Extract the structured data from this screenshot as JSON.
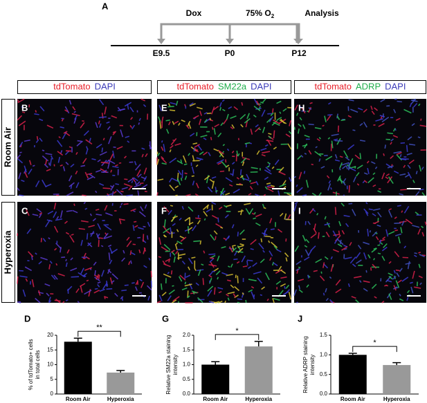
{
  "timeline": {
    "panel": "A",
    "events": [
      "Dox",
      "Analysis"
    ],
    "oxygen": {
      "text": "75% O",
      "subscript": "2"
    },
    "points": [
      "E9.5",
      "P0",
      "P12"
    ]
  },
  "headers": [
    [
      "tdTomato",
      "DAPI"
    ],
    [
      "tdTomato",
      "SM22a",
      "DAPI"
    ],
    [
      "tdTomato",
      "ADRP",
      "DAPI"
    ]
  ],
  "rows": [
    "Room Air",
    "Hyperoxia"
  ],
  "image_labels": [
    [
      "B",
      "E",
      "H"
    ],
    [
      "C",
      "F",
      "I"
    ]
  ],
  "chart_data": [
    {
      "type": "bar",
      "panel": "D",
      "ylabel": [
        "% of tdTomato+ cells",
        "in total cells"
      ],
      "categories": [
        "Room Air",
        "Hyperoxia"
      ],
      "values": [
        17.8,
        7.3
      ],
      "errors": [
        1.2,
        0.7
      ],
      "colors": [
        "#000000",
        "#999999"
      ],
      "ylim": [
        0,
        20
      ],
      "yticks": [
        0,
        5,
        10,
        15,
        20
      ],
      "annotation": "**"
    },
    {
      "type": "bar",
      "panel": "G",
      "ylabel": [
        "Relative SM22a staining",
        "intensity"
      ],
      "categories": [
        "Room Air",
        "Hyperoxia"
      ],
      "values": [
        1.0,
        1.62
      ],
      "errors": [
        0.1,
        0.17
      ],
      "colors": [
        "#000000",
        "#999999"
      ],
      "ylim": [
        0,
        2.0
      ],
      "yticks": [
        {
          "value": 0,
          "label": "0.0"
        },
        {
          "value": 0.5,
          "label": "0.5"
        },
        {
          "value": 1.0,
          "label": "1.0"
        },
        {
          "value": 1.5,
          "label": "1.5"
        },
        {
          "value": 2.0,
          "label": "2.0"
        }
      ],
      "annotation": "*"
    },
    {
      "type": "bar",
      "panel": "J",
      "ylabel": [
        "Relative ADRP staining",
        "intensity"
      ],
      "categories": [
        "Room Air",
        "Hyperoxia"
      ],
      "values": [
        1.0,
        0.74
      ],
      "errors": [
        0.04,
        0.06
      ],
      "colors": [
        "#000000",
        "#999999"
      ],
      "ylim": [
        0,
        1.5
      ],
      "yticks": [
        {
          "value": 0,
          "label": "0.0"
        },
        {
          "value": 0.5,
          "label": "0.5"
        },
        {
          "value": 1.0,
          "label": "1.0"
        },
        {
          "value": 1.5,
          "label": "1.5"
        }
      ],
      "annotation": "*"
    }
  ]
}
